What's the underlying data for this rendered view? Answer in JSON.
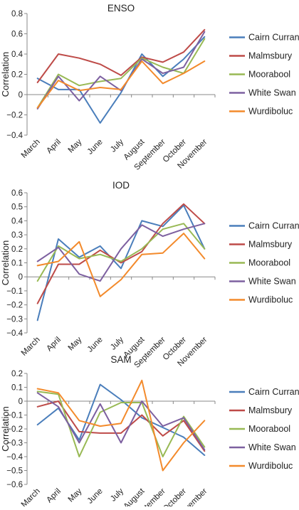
{
  "chart_data": [
    {
      "type": "line",
      "title": "ENSO",
      "ylabel": "Correlation",
      "xlabel": "",
      "categories": [
        "March",
        "April",
        "May",
        "June",
        "July",
        "August",
        "September",
        "October",
        "November"
      ],
      "ylim": [
        -0.4,
        0.8
      ],
      "yticks": [
        -0.4,
        -0.2,
        0,
        0.2,
        0.4,
        0.6,
        0.8
      ],
      "ytick_labels": [
        "−0.4",
        "−0.2",
        "0",
        "0.2",
        "0.4",
        "0.6",
        "0.8"
      ],
      "legend_position": "right",
      "grid": false,
      "series": [
        {
          "name": "Cairn Curran",
          "color": "#4a7ebb",
          "values": [
            0.16,
            0.05,
            0.05,
            -0.28,
            0.02,
            0.4,
            0.18,
            0.35,
            0.57
          ]
        },
        {
          "name": "Malmsbury",
          "color": "#be4b48",
          "values": [
            0.12,
            0.4,
            0.36,
            0.3,
            0.19,
            0.37,
            0.32,
            0.42,
            0.64
          ]
        },
        {
          "name": "Moorabool",
          "color": "#98b954",
          "values": [
            -0.13,
            0.2,
            0.09,
            0.13,
            0.16,
            0.36,
            0.27,
            0.21,
            0.55
          ]
        },
        {
          "name": "White Swan",
          "color": "#7d60a0",
          "values": [
            -0.14,
            0.18,
            -0.06,
            0.18,
            0.04,
            0.35,
            0.21,
            0.27,
            0.62
          ]
        },
        {
          "name": "Wurdiboluc",
          "color": "#f38a2b",
          "values": [
            -0.13,
            0.14,
            0.04,
            0.07,
            0.05,
            0.33,
            0.11,
            0.21,
            0.33
          ]
        }
      ]
    },
    {
      "type": "line",
      "title": "IOD",
      "ylabel": "Correlation",
      "xlabel": "",
      "categories": [
        "March",
        "April",
        "May",
        "June",
        "July",
        "August",
        "September",
        "October",
        "November"
      ],
      "ylim": [
        -0.4,
        0.6
      ],
      "yticks": [
        -0.4,
        -0.3,
        -0.2,
        -0.1,
        0,
        0.1,
        0.2,
        0.3,
        0.4,
        0.5,
        0.6
      ],
      "ytick_labels": [
        "−0.4",
        "−0.3",
        "−0.2",
        "−0.1",
        "0",
        "0.1",
        "0.2",
        "0.3",
        "0.4",
        "0.5",
        "0.6"
      ],
      "legend_position": "right",
      "grid": false,
      "series": [
        {
          "name": "Cairn Curran",
          "color": "#4a7ebb",
          "values": [
            -0.31,
            0.27,
            0.14,
            0.22,
            0.06,
            0.4,
            0.36,
            0.51,
            0.2
          ]
        },
        {
          "name": "Malmsbury",
          "color": "#be4b48",
          "values": [
            -0.19,
            0.09,
            0.09,
            0.19,
            0.1,
            0.18,
            0.38,
            0.52,
            0.38
          ]
        },
        {
          "name": "Moorabool",
          "color": "#98b954",
          "values": [
            -0.03,
            0.22,
            0.13,
            0.16,
            0.11,
            0.2,
            0.34,
            0.38,
            0.2
          ]
        },
        {
          "name": "White Swan",
          "color": "#7d60a0",
          "values": [
            0.11,
            0.21,
            0.02,
            -0.03,
            0.2,
            0.37,
            0.29,
            0.34,
            0.38
          ]
        },
        {
          "name": "Wurdiboluc",
          "color": "#f38a2b",
          "values": [
            0.08,
            0.11,
            0.25,
            -0.14,
            -0.02,
            0.16,
            0.17,
            0.31,
            0.13
          ]
        }
      ]
    },
    {
      "type": "line",
      "title": "SAM",
      "ylabel": "Correlation",
      "xlabel": "",
      "categories": [
        "March",
        "April",
        "May",
        "June",
        "July",
        "August",
        "September",
        "October",
        "November"
      ],
      "ylim": [
        -0.6,
        0.2
      ],
      "yticks": [
        -0.6,
        -0.5,
        -0.4,
        -0.3,
        -0.2,
        -0.1,
        0,
        0.1,
        0.2
      ],
      "ytick_labels": [
        "−0.6",
        "−0.5",
        "−0.4",
        "−0.3",
        "−0.2",
        "−0.1",
        "0",
        "0.1",
        "0.2"
      ],
      "legend_position": "right",
      "grid": false,
      "series": [
        {
          "name": "Cairn Curran",
          "color": "#4a7ebb",
          "values": [
            -0.17,
            -0.05,
            -0.28,
            0.12,
            0.01,
            -0.12,
            -0.19,
            -0.26,
            -0.39
          ]
        },
        {
          "name": "Malmsbury",
          "color": "#be4b48",
          "values": [
            -0.04,
            0.0,
            -0.22,
            -0.23,
            -0.23,
            -0.1,
            -0.25,
            -0.14,
            -0.36
          ]
        },
        {
          "name": "Moorabool",
          "color": "#98b954",
          "values": [
            0.07,
            0.05,
            -0.4,
            -0.08,
            -0.01,
            -0.01,
            -0.4,
            -0.11,
            -0.33
          ]
        },
        {
          "name": "White Swan",
          "color": "#7d60a0",
          "values": [
            0.06,
            -0.04,
            -0.3,
            -0.02,
            -0.3,
            0.0,
            -0.18,
            -0.12,
            -0.35
          ]
        },
        {
          "name": "Wurdiboluc",
          "color": "#f38a2b",
          "values": [
            0.09,
            0.06,
            -0.14,
            -0.18,
            -0.16,
            0.15,
            -0.5,
            -0.3,
            -0.14
          ]
        }
      ]
    }
  ]
}
